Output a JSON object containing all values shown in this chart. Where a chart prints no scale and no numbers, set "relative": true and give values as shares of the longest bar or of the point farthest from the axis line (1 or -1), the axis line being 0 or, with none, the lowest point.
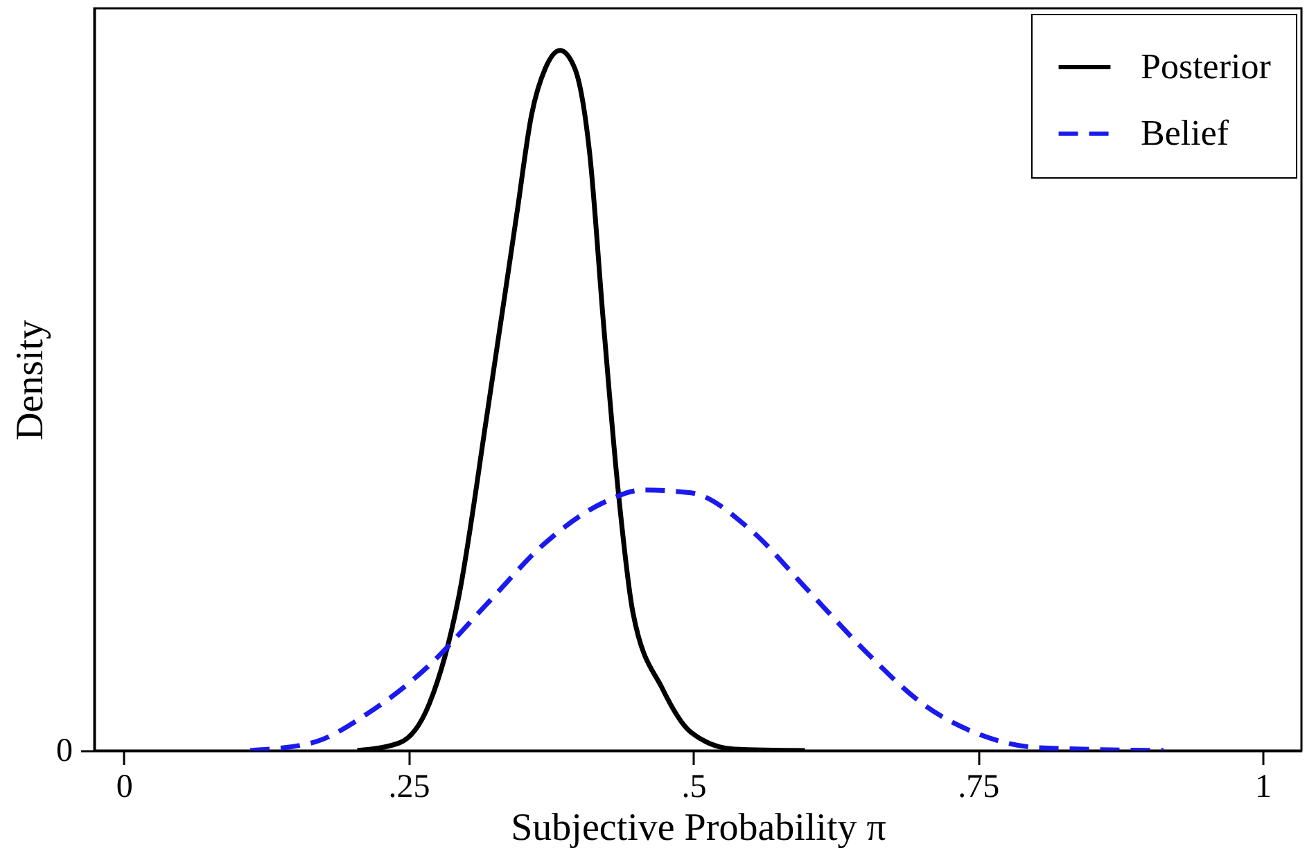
{
  "chart_data": {
    "type": "line",
    "xlabel": "Subjective Probability π",
    "ylabel": "Density",
    "relative": true,
    "annotations": [
      "0"
    ],
    "xlim": [
      -0.026,
      1.034
    ],
    "xticks": [
      0,
      {
        "value": 0.25,
        "label": ".25"
      },
      {
        "value": 0.5,
        "label": ".5"
      },
      {
        "value": 0.75,
        "label": ".75"
      },
      1
    ],
    "grid": false,
    "legend": "top right",
    "marker": "none",
    "series": [
      {
        "name": "Posterior",
        "color": "#000000",
        "line_style": "solid",
        "x": [
          0.205,
          0.242,
          0.268,
          0.294,
          0.319,
          0.345,
          0.358,
          0.37,
          0.383,
          0.396,
          0.409,
          0.421,
          0.434,
          0.447,
          0.473,
          0.498,
          0.536,
          0.598
        ],
        "values": [
          0,
          0.011,
          0.066,
          0.219,
          0.481,
          0.766,
          0.908,
          0.974,
          1,
          0.974,
          0.853,
          0.613,
          0.372,
          0.197,
          0.088,
          0.026,
          0.002,
          0
        ]
      },
      {
        "name": "Belief",
        "color": "#1a1aee",
        "line_style": "dashed",
        "x": [
          0.111,
          0.165,
          0.216,
          0.267,
          0.318,
          0.369,
          0.421,
          0.456,
          0.498,
          0.549,
          0.6,
          0.651,
          0.702,
          0.753,
          0.804,
          0.913
        ],
        "values": [
          0,
          0.011,
          0.055,
          0.12,
          0.208,
          0.295,
          0.354,
          0.372,
          0.368,
          0.317,
          0.23,
          0.142,
          0.066,
          0.022,
          0.004,
          0
        ]
      }
    ]
  }
}
